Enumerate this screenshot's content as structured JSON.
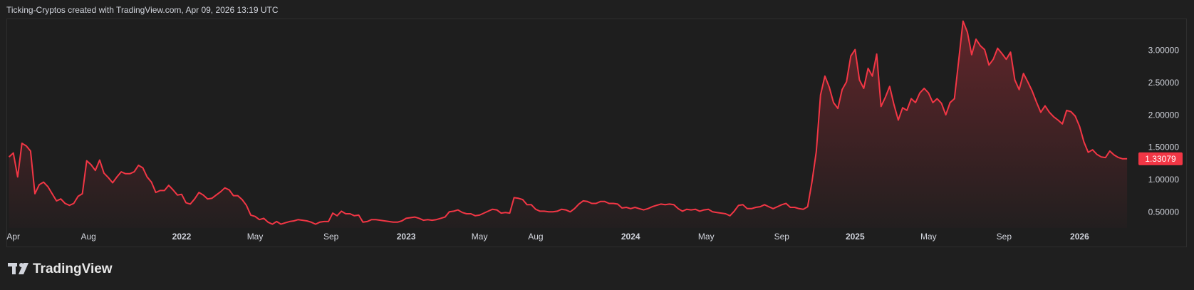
{
  "chart_data": {
    "type": "area-line",
    "title": "Ticking-Cryptos created with TradingView.com, Apr 09, 2026 13:19 UTC",
    "color": "#f23645",
    "values": [
      1.36,
      1.42,
      1.05,
      1.57,
      1.53,
      1.45,
      0.79,
      0.93,
      0.97,
      0.9,
      0.79,
      0.68,
      0.71,
      0.64,
      0.61,
      0.64,
      0.75,
      0.79,
      1.3,
      1.24,
      1.15,
      1.31,
      1.11,
      1.04,
      0.96,
      1.05,
      1.13,
      1.1,
      1.1,
      1.13,
      1.23,
      1.19,
      1.05,
      0.97,
      0.81,
      0.84,
      0.84,
      0.92,
      0.85,
      0.77,
      0.78,
      0.65,
      0.63,
      0.71,
      0.81,
      0.77,
      0.71,
      0.72,
      0.77,
      0.82,
      0.88,
      0.85,
      0.76,
      0.76,
      0.7,
      0.61,
      0.46,
      0.44,
      0.39,
      0.41,
      0.35,
      0.32,
      0.36,
      0.32,
      0.34,
      0.36,
      0.37,
      0.39,
      0.38,
      0.37,
      0.35,
      0.32,
      0.35,
      0.36,
      0.36,
      0.49,
      0.45,
      0.52,
      0.48,
      0.48,
      0.45,
      0.46,
      0.35,
      0.36,
      0.39,
      0.39,
      0.38,
      0.37,
      0.36,
      0.35,
      0.35,
      0.37,
      0.41,
      0.42,
      0.43,
      0.41,
      0.38,
      0.39,
      0.38,
      0.39,
      0.41,
      0.43,
      0.51,
      0.52,
      0.54,
      0.5,
      0.48,
      0.48,
      0.45,
      0.46,
      0.49,
      0.52,
      0.55,
      0.54,
      0.49,
      0.5,
      0.49,
      0.73,
      0.72,
      0.7,
      0.62,
      0.62,
      0.55,
      0.52,
      0.52,
      0.51,
      0.51,
      0.52,
      0.55,
      0.54,
      0.51,
      0.56,
      0.63,
      0.68,
      0.67,
      0.64,
      0.64,
      0.67,
      0.67,
      0.64,
      0.64,
      0.63,
      0.57,
      0.58,
      0.56,
      0.58,
      0.56,
      0.54,
      0.56,
      0.59,
      0.61,
      0.63,
      0.62,
      0.63,
      0.62,
      0.56,
      0.52,
      0.55,
      0.54,
      0.55,
      0.52,
      0.54,
      0.55,
      0.51,
      0.5,
      0.49,
      0.48,
      0.45,
      0.52,
      0.61,
      0.62,
      0.56,
      0.56,
      0.58,
      0.59,
      0.62,
      0.59,
      0.56,
      0.59,
      0.62,
      0.64,
      0.58,
      0.58,
      0.56,
      0.55,
      0.59,
      0.97,
      1.44,
      2.32,
      2.61,
      2.44,
      2.2,
      2.11,
      2.4,
      2.52,
      2.92,
      3.02,
      2.55,
      2.42,
      2.73,
      2.61,
      2.95,
      2.14,
      2.28,
      2.45,
      2.17,
      1.93,
      2.12,
      2.08,
      2.26,
      2.2,
      2.35,
      2.42,
      2.35,
      2.2,
      2.26,
      2.19,
      2.01,
      2.2,
      2.26,
      2.85,
      3.46,
      3.29,
      2.94,
      3.18,
      3.08,
      3.02,
      2.78,
      2.87,
      3.04,
      2.96,
      2.87,
      2.98,
      2.55,
      2.4,
      2.65,
      2.52,
      2.38,
      2.21,
      2.05,
      2.15,
      2.05,
      1.98,
      1.93,
      1.87,
      2.08,
      2.06,
      1.99,
      1.83,
      1.59,
      1.43,
      1.47,
      1.4,
      1.36,
      1.35,
      1.45,
      1.39,
      1.35,
      1.33,
      1.33079
    ],
    "xlim": [
      -0.6,
      261.3
    ],
    "xticks": [
      {
        "value": 1,
        "label": "Apr"
      },
      {
        "value": 18.4,
        "label": "Aug"
      },
      {
        "value": 40,
        "label": "2022"
      },
      {
        "value": 57,
        "label": "May"
      },
      {
        "value": 74.6,
        "label": "Sep"
      },
      {
        "value": 92,
        "label": "2023"
      },
      {
        "value": 109,
        "label": "May"
      },
      {
        "value": 122,
        "label": "Aug"
      },
      {
        "value": 144,
        "label": "2024"
      },
      {
        "value": 161.5,
        "label": "May"
      },
      {
        "value": 179,
        "label": "Sep"
      },
      {
        "value": 196,
        "label": "2025"
      },
      {
        "value": 213,
        "label": "May"
      },
      {
        "value": 230.5,
        "label": "Sep"
      },
      {
        "value": 248,
        "label": "2026"
      }
    ],
    "ylim": [
      0.26,
      3.5
    ],
    "yticks": [
      {
        "value": 0.5,
        "label": "0.50000"
      },
      {
        "value": 1,
        "label": "1.00000"
      },
      {
        "value": 1.5,
        "label": "1.50000"
      },
      {
        "value": 2,
        "label": "2.00000"
      },
      {
        "value": 2.5,
        "label": "2.50000"
      },
      {
        "value": 3,
        "label": "3.00000"
      }
    ],
    "grid": false
  },
  "brand": "TradingView"
}
